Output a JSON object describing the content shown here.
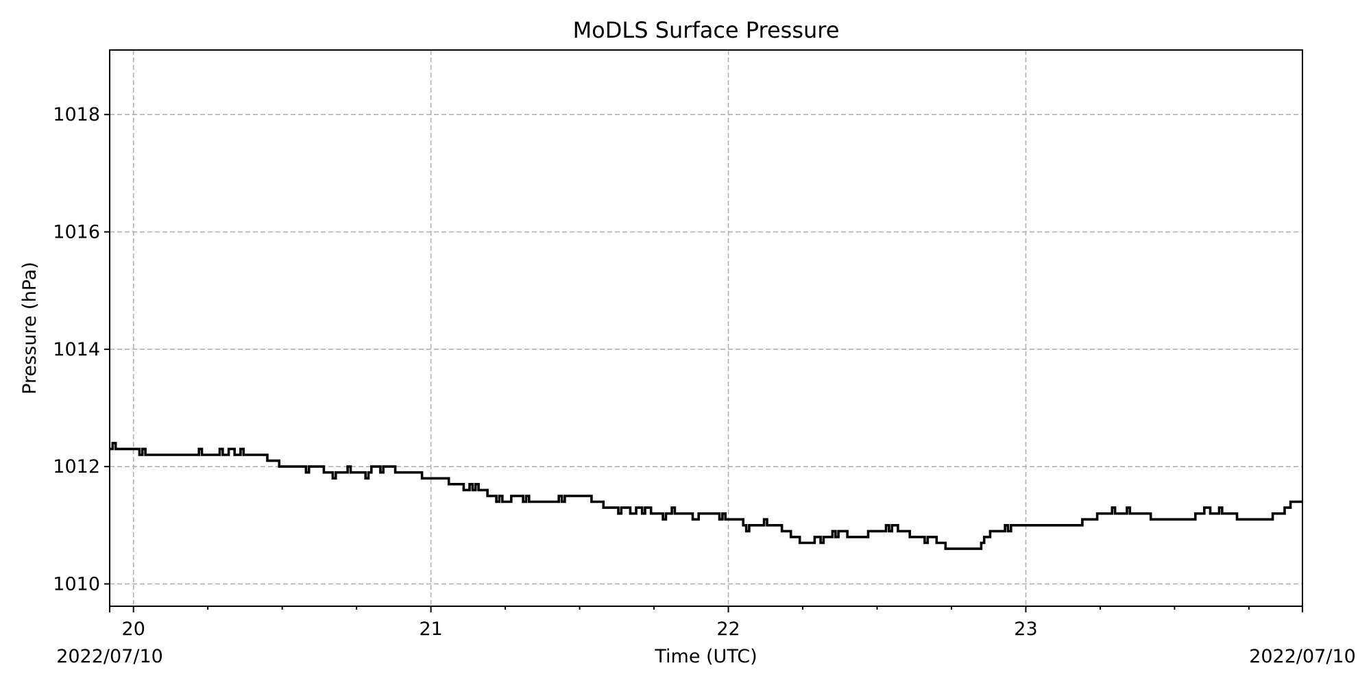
{
  "chart_data": {
    "type": "line",
    "title": "MoDLS Surface Pressure",
    "xlabel": "Time (UTC)",
    "ylabel": "Pressure (hPa)",
    "date_left": "2022/07/10",
    "date_right": "2022/07/10",
    "x_unit": "hours (UTC)",
    "xlim": [
      19.92,
      23.93
    ],
    "ylim": [
      1009.62,
      1019.1
    ],
    "x_ticks": [
      {
        "value": 20,
        "label": "20"
      },
      {
        "value": 21,
        "label": "21"
      },
      {
        "value": 22,
        "label": "22"
      },
      {
        "value": 23,
        "label": "23"
      }
    ],
    "x_minor_ticks": [
      20.25,
      20.5,
      20.75,
      21.25,
      21.5,
      21.75,
      22.25,
      22.5,
      22.75,
      23.25,
      23.5,
      23.75
    ],
    "y_ticks": [
      {
        "value": 1010,
        "label": "1010"
      },
      {
        "value": 1012,
        "label": "1012"
      },
      {
        "value": 1014,
        "label": "1014"
      },
      {
        "value": 1016,
        "label": "1016"
      },
      {
        "value": 1018,
        "label": "1018"
      }
    ],
    "grid": true,
    "series": [
      {
        "color": "#000000",
        "step": true,
        "points": [
          [
            19.92,
            1012.3
          ],
          [
            19.93,
            1012.4
          ],
          [
            19.94,
            1012.3
          ],
          [
            20.02,
            1012.2
          ],
          [
            20.03,
            1012.3
          ],
          [
            20.04,
            1012.2
          ],
          [
            20.22,
            1012.3
          ],
          [
            20.23,
            1012.2
          ],
          [
            20.29,
            1012.3
          ],
          [
            20.3,
            1012.2
          ],
          [
            20.32,
            1012.3
          ],
          [
            20.34,
            1012.2
          ],
          [
            20.36,
            1012.3
          ],
          [
            20.37,
            1012.2
          ],
          [
            20.45,
            1012.1
          ],
          [
            20.49,
            1012.0
          ],
          [
            20.58,
            1011.9
          ],
          [
            20.59,
            1012.0
          ],
          [
            20.64,
            1011.9
          ],
          [
            20.67,
            1011.8
          ],
          [
            20.68,
            1011.9
          ],
          [
            20.72,
            1012.0
          ],
          [
            20.73,
            1011.9
          ],
          [
            20.78,
            1011.8
          ],
          [
            20.79,
            1011.9
          ],
          [
            20.8,
            1012.0
          ],
          [
            20.83,
            1011.9
          ],
          [
            20.84,
            1012.0
          ],
          [
            20.88,
            1011.9
          ],
          [
            20.97,
            1011.8
          ],
          [
            21.06,
            1011.7
          ],
          [
            21.11,
            1011.6
          ],
          [
            21.13,
            1011.7
          ],
          [
            21.14,
            1011.6
          ],
          [
            21.15,
            1011.7
          ],
          [
            21.16,
            1011.6
          ],
          [
            21.19,
            1011.5
          ],
          [
            21.22,
            1011.4
          ],
          [
            21.23,
            1011.5
          ],
          [
            21.24,
            1011.4
          ],
          [
            21.27,
            1011.5
          ],
          [
            21.31,
            1011.4
          ],
          [
            21.32,
            1011.5
          ],
          [
            21.33,
            1011.4
          ],
          [
            21.43,
            1011.5
          ],
          [
            21.44,
            1011.4
          ],
          [
            21.45,
            1011.5
          ],
          [
            21.54,
            1011.4
          ],
          [
            21.58,
            1011.3
          ],
          [
            21.63,
            1011.2
          ],
          [
            21.64,
            1011.3
          ],
          [
            21.67,
            1011.2
          ],
          [
            21.69,
            1011.3
          ],
          [
            21.71,
            1011.2
          ],
          [
            21.72,
            1011.3
          ],
          [
            21.74,
            1011.2
          ],
          [
            21.78,
            1011.1
          ],
          [
            21.79,
            1011.2
          ],
          [
            21.81,
            1011.3
          ],
          [
            21.82,
            1011.2
          ],
          [
            21.88,
            1011.1
          ],
          [
            21.9,
            1011.2
          ],
          [
            21.97,
            1011.1
          ],
          [
            21.98,
            1011.2
          ],
          [
            21.99,
            1011.1
          ],
          [
            22.05,
            1011.0
          ],
          [
            22.06,
            1010.9
          ],
          [
            22.07,
            1011.0
          ],
          [
            22.12,
            1011.1
          ],
          [
            22.13,
            1011.0
          ],
          [
            22.18,
            1010.9
          ],
          [
            22.21,
            1010.8
          ],
          [
            22.24,
            1010.7
          ],
          [
            22.29,
            1010.8
          ],
          [
            22.31,
            1010.7
          ],
          [
            22.32,
            1010.8
          ],
          [
            22.35,
            1010.9
          ],
          [
            22.36,
            1010.8
          ],
          [
            22.37,
            1010.9
          ],
          [
            22.4,
            1010.8
          ],
          [
            22.47,
            1010.9
          ],
          [
            22.53,
            1011.0
          ],
          [
            22.54,
            1010.9
          ],
          [
            22.55,
            1011.0
          ],
          [
            22.57,
            1010.9
          ],
          [
            22.61,
            1010.8
          ],
          [
            22.66,
            1010.7
          ],
          [
            22.67,
            1010.8
          ],
          [
            22.7,
            1010.7
          ],
          [
            22.73,
            1010.6
          ],
          [
            22.85,
            1010.7
          ],
          [
            22.86,
            1010.8
          ],
          [
            22.88,
            1010.9
          ],
          [
            22.93,
            1011.0
          ],
          [
            22.94,
            1010.9
          ],
          [
            22.95,
            1011.0
          ],
          [
            23.19,
            1011.1
          ],
          [
            23.24,
            1011.2
          ],
          [
            23.29,
            1011.3
          ],
          [
            23.3,
            1011.2
          ],
          [
            23.34,
            1011.3
          ],
          [
            23.35,
            1011.2
          ],
          [
            23.42,
            1011.1
          ],
          [
            23.57,
            1011.2
          ],
          [
            23.6,
            1011.3
          ],
          [
            23.62,
            1011.2
          ],
          [
            23.65,
            1011.3
          ],
          [
            23.66,
            1011.2
          ],
          [
            23.71,
            1011.1
          ],
          [
            23.83,
            1011.2
          ],
          [
            23.87,
            1011.3
          ],
          [
            23.89,
            1011.4
          ],
          [
            23.93,
            1011.4
          ]
        ]
      }
    ]
  }
}
